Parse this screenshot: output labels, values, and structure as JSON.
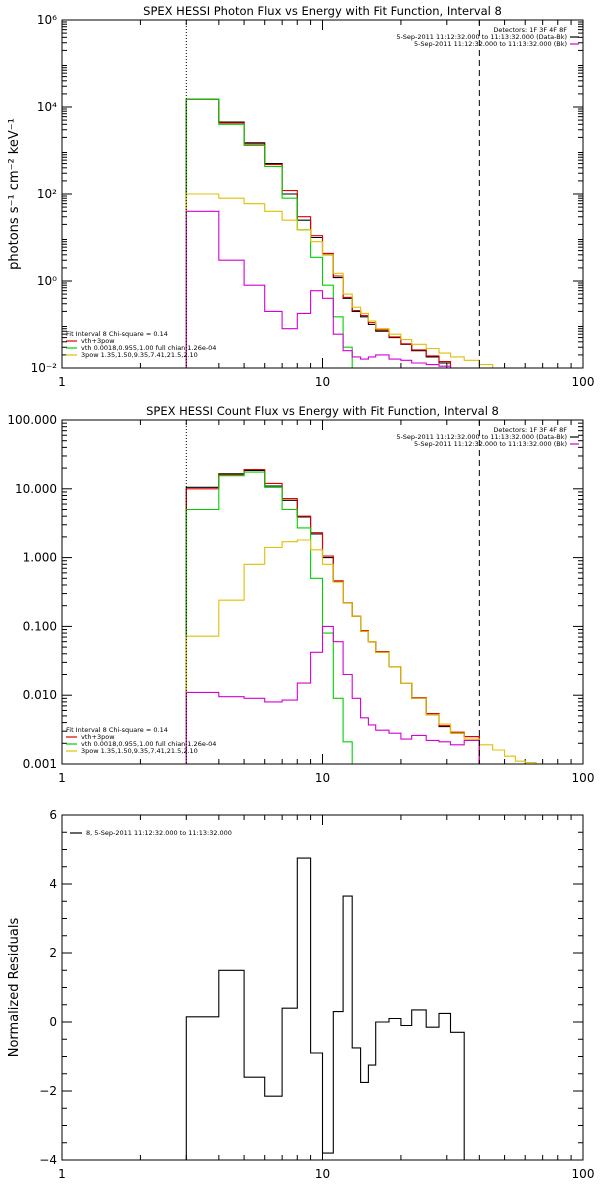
{
  "chart_data": [
    {
      "type": "line",
      "step": true,
      "title": "SPEX HESSI Photon Flux vs Energy with Fit Function, Interval 8",
      "ylabel": "photons s⁻¹ cm⁻² keV⁻¹",
      "xscale": "log",
      "yscale": "log",
      "xlim": [
        1,
        100
      ],
      "ylim": [
        0.01,
        1000000
      ],
      "xticks": [
        1,
        10,
        100
      ],
      "xtick_labels": [
        "1",
        "10",
        "100"
      ],
      "yticks": [
        0.01,
        1,
        100,
        10000,
        1000000
      ],
      "ytick_labels": [
        "10⁻²",
        "10⁰",
        "10²",
        "10⁴",
        "10⁶"
      ],
      "vlines": [
        {
          "x": 3,
          "style": "dotted"
        },
        {
          "x": 40,
          "style": "dashed"
        }
      ],
      "legend_top_right": [
        {
          "text": "Detectors: 1F 3F 4F 8F",
          "color": "#000000"
        },
        {
          "text": "5-Sep-2011 11:12:32.000 to 11:13:32.000 (Data-Bk)",
          "color": "#000000"
        },
        {
          "text": "5-Sep-2011 11:12:32.000 to 11:13:32.000 (Bk)",
          "color": "#d400d4"
        }
      ],
      "legend_bottom_left": [
        {
          "text": "Fit Interval 8   Chi-square = 0.14",
          "color": "#000000"
        },
        {
          "text": "vth+3pow",
          "color": "#e00000"
        },
        {
          "text": "vth 0.0018,0.955,1.00  full chian 1.26e-04",
          "color": "#00d000"
        },
        {
          "text": "3pow 1.35,1.50,9.35,7.41,21.5,2.10",
          "color": "#e0c000"
        }
      ],
      "edges": [
        3,
        4,
        5,
        6,
        7,
        8,
        9,
        10,
        11,
        12,
        13,
        14,
        15,
        16,
        18,
        20,
        22,
        25,
        28,
        31,
        35,
        40,
        45,
        50
      ],
      "series": [
        {
          "color": "#000000",
          "values": [
            15000,
            4500,
            1500,
            500,
            100,
            25,
            10,
            4,
            1.2,
            0.4,
            0.2,
            0.15,
            0.1,
            0.07,
            0.05,
            0.035,
            0.025,
            0.018,
            0.013
          ]
        },
        {
          "color": "#e00000",
          "values": [
            15000,
            4300,
            1400,
            480,
            120,
            30,
            11,
            4.3,
            1.3,
            0.42,
            0.21,
            0.16,
            0.11,
            0.075,
            0.052,
            0.036,
            0.026,
            0.019,
            0.014
          ]
        },
        {
          "color": "#00d000",
          "values": [
            15000,
            4000,
            1300,
            430,
            80,
            15,
            3.5,
            0.8,
            0.15,
            0.03,
            0.008
          ]
        },
        {
          "color": "#e0c000",
          "values": [
            100,
            80,
            60,
            40,
            25,
            15,
            8,
            4,
            1.5,
            0.5,
            0.25,
            0.18,
            0.12,
            0.08,
            0.06,
            0.045,
            0.035,
            0.028,
            0.022,
            0.018,
            0.015,
            0.012,
            0.01
          ]
        },
        {
          "color": "#d400d4",
          "values": [
            40,
            3,
            0.8,
            0.2,
            0.08,
            0.18,
            0.6,
            0.4,
            0.06,
            0.025,
            0.018,
            0.016,
            0.018,
            0.02,
            0.016,
            0.015,
            0.013,
            0.012,
            0.011,
            0.01
          ]
        }
      ]
    },
    {
      "type": "line",
      "step": true,
      "title": "SPEX HESSI Count Flux vs Energy with Fit Function, Interval 8",
      "ylabel": "",
      "xscale": "log",
      "yscale": "log",
      "xlim": [
        1,
        100
      ],
      "ylim": [
        0.001,
        100
      ],
      "xticks": [
        1,
        10,
        100
      ],
      "xtick_labels": [
        "1",
        "10",
        "100"
      ],
      "yticks": [
        0.001,
        0.01,
        0.1,
        1,
        10,
        100
      ],
      "ytick_labels": [
        "0.001",
        "0.010",
        "0.100",
        "1.000",
        "10.000",
        "100.000"
      ],
      "vlines": [
        {
          "x": 3,
          "style": "dotted"
        },
        {
          "x": 40,
          "style": "dashed"
        }
      ],
      "legend_top_right": [
        {
          "text": "Detectors: 1F 3F 4F 8F",
          "color": "#000000"
        },
        {
          "text": "5-Sep-2011 11:12:32.000 to 11:13:32.000 (Data-Bk)",
          "color": "#000000"
        },
        {
          "text": "5-Sep-2011 11:12:32.000 to 11:13:32.000 (Bk)",
          "color": "#d400d4"
        }
      ],
      "legend_bottom_left": [
        {
          "text": "Fit Interval 8   Chi-square = 0.14",
          "color": "#000000"
        },
        {
          "text": "vth+3pow",
          "color": "#e00000"
        },
        {
          "text": "vth 0.0018,0.955,1.00  full chian 1.26e-04",
          "color": "#00d000"
        },
        {
          "text": "3pow 1.35,1.50,9.35,7.41,21.5,2.10",
          "color": "#e0c000"
        }
      ],
      "edges": [
        3,
        4,
        5,
        6,
        7,
        8,
        9,
        10,
        11,
        12,
        13,
        14,
        15,
        16,
        18,
        20,
        22,
        25,
        28,
        31,
        35,
        40,
        45,
        50,
        55,
        60,
        66
      ],
      "series": [
        {
          "color": "#000000",
          "values": [
            10.5,
            16.5,
            18.5,
            11,
            6.8,
            3.9,
            2.2,
            1.0,
            0.45,
            0.22,
            0.14,
            0.085,
            0.06,
            0.042,
            0.026,
            0.015,
            0.009,
            0.0052,
            0.0035,
            0.0028,
            0.0025
          ]
        },
        {
          "color": "#e00000",
          "values": [
            10.0,
            16.0,
            19.0,
            12.0,
            7.2,
            4.0,
            2.3,
            1.05,
            0.46,
            0.22,
            0.14,
            0.087,
            0.06,
            0.043,
            0.026,
            0.015,
            0.0092,
            0.0054,
            0.0036,
            0.0029,
            0.0025
          ]
        },
        {
          "color": "#00d000",
          "values": [
            5.0,
            15.5,
            17.5,
            10.5,
            5.0,
            2.7,
            0.5,
            0.08,
            0.009,
            0.0021
          ]
        },
        {
          "color": "#e0c000",
          "values": [
            0.072,
            0.24,
            0.8,
            1.4,
            1.7,
            1.8,
            1.3,
            0.8,
            0.44,
            0.22,
            0.14,
            0.085,
            0.06,
            0.042,
            0.026,
            0.015,
            0.009,
            0.0052,
            0.0038,
            0.0028,
            0.0023,
            0.0019,
            0.0016,
            0.0013,
            0.0011,
            0.00105
          ]
        },
        {
          "color": "#d400d4",
          "values": [
            0.011,
            0.0095,
            0.009,
            0.008,
            0.0085,
            0.015,
            0.042,
            0.1,
            0.06,
            0.02,
            0.009,
            0.0047,
            0.0037,
            0.0031,
            0.0028,
            0.0023,
            0.0026,
            0.0022,
            0.0021,
            0.0019,
            0.0022
          ]
        }
      ]
    },
    {
      "type": "line",
      "step": true,
      "title": "",
      "ylabel": "Normalized Residuals",
      "xscale": "log",
      "yscale": "linear",
      "xlim": [
        1,
        100
      ],
      "ylim": [
        -4,
        6
      ],
      "xticks": [
        1,
        10,
        100
      ],
      "xtick_labels": [
        "1",
        "10",
        "100"
      ],
      "yticks": [
        -4,
        -2,
        0,
        2,
        4,
        6
      ],
      "ytick_labels": [
        "−4",
        "−2",
        "0",
        "2",
        "4",
        "6"
      ],
      "legend_top_left": [
        {
          "text": "8,  5-Sep-2011 11:12:32.000 to 11:13:32.000",
          "color": "#000000"
        }
      ],
      "edges": [
        3,
        4,
        5,
        6,
        7,
        8,
        9,
        10,
        11,
        12,
        13,
        14,
        15,
        16,
        18,
        20,
        22,
        25,
        28,
        31,
        35,
        40
      ],
      "series": [
        {
          "color": "#000000",
          "values": [
            0.15,
            1.5,
            -1.6,
            -2.15,
            0.4,
            4.75,
            -0.9,
            -3.8,
            0.3,
            3.65,
            -0.75,
            -1.75,
            -1.25,
            0.0,
            0.1,
            -0.1,
            0.35,
            -0.15,
            0.25,
            -0.3
          ]
        }
      ]
    }
  ]
}
